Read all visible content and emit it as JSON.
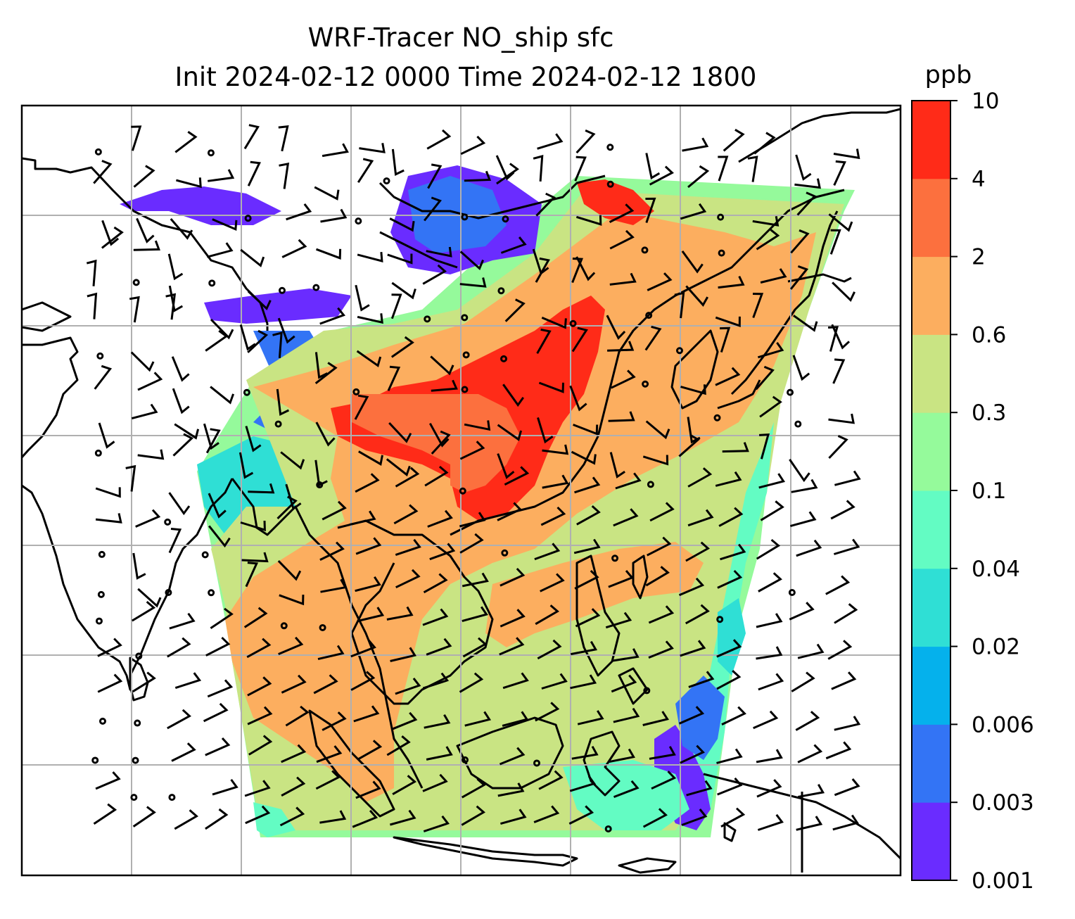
{
  "title": {
    "line1": "WRF-Tracer NO_ship sfc",
    "line2": "Init 2024-02-12 0000 Time 2024-02-12 1800"
  },
  "colorbar": {
    "unit": "ppb",
    "levels": [
      "0.001",
      "0.003",
      "0.006",
      "0.02",
      "0.04",
      "0.1",
      "0.3",
      "0.6",
      "2",
      "4",
      "10"
    ],
    "colors": [
      "#6a2cff",
      "#3374f5",
      "#05b1ec",
      "#2fdfd5",
      "#63fcc3",
      "#95fa9b",
      "#c9e483",
      "#fcae5f",
      "#fc703e",
      "#ff2b18"
    ]
  },
  "map": {
    "coastline_color": "#000000",
    "gridline_color": "#b0b0b0",
    "wind_barbs": "black"
  }
}
